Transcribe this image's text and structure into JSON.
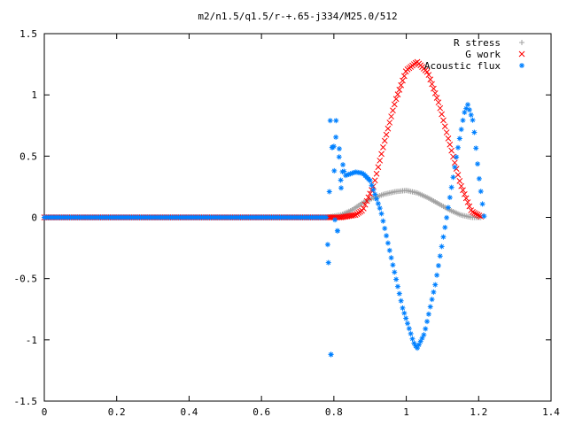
{
  "chart_data": {
    "type": "scatter",
    "title": "m2/n1.5/q1.5/r-+.65-j334/M25.0/512",
    "xlabel": "",
    "ylabel": "",
    "xlim": [
      0,
      1.4
    ],
    "ylim": [
      -1.5,
      1.5
    ],
    "xticks": [
      "0",
      "0.2",
      "0.4",
      "0.6",
      "0.8",
      "1",
      "1.2",
      "1.4"
    ],
    "yticks": [
      "1.5",
      "1",
      "0.5",
      "0",
      "-0.5",
      "-1",
      "-1.5"
    ],
    "grid": false,
    "legend_position": "top-right",
    "series": [
      {
        "name": "R stress",
        "marker": "+",
        "color": "#a0a0a0",
        "points": [
          [
            0,
            0
          ],
          [
            0.2,
            0
          ],
          [
            0.4,
            0
          ],
          [
            0.6,
            0
          ],
          [
            0.78,
            0
          ],
          [
            0.82,
            0.02
          ],
          [
            0.85,
            0.06
          ],
          [
            0.88,
            0.12
          ],
          [
            0.91,
            0.16
          ],
          [
            0.94,
            0.19
          ],
          [
            0.97,
            0.21
          ],
          [
            1.0,
            0.22
          ],
          [
            1.03,
            0.2
          ],
          [
            1.06,
            0.16
          ],
          [
            1.09,
            0.11
          ],
          [
            1.12,
            0.06
          ],
          [
            1.15,
            0.02
          ],
          [
            1.18,
            0.0
          ],
          [
            1.21,
            0.0
          ]
        ]
      },
      {
        "name": "G work",
        "marker": "x",
        "color": "#ff0000",
        "points": [
          [
            0,
            0
          ],
          [
            0.2,
            0
          ],
          [
            0.4,
            0
          ],
          [
            0.6,
            0
          ],
          [
            0.78,
            0
          ],
          [
            0.82,
            0.0
          ],
          [
            0.86,
            0.02
          ],
          [
            0.88,
            0.06
          ],
          [
            0.91,
            0.26
          ],
          [
            0.94,
            0.62
          ],
          [
            0.97,
            0.95
          ],
          [
            1.0,
            1.2
          ],
          [
            1.03,
            1.27
          ],
          [
            1.06,
            1.18
          ],
          [
            1.09,
            0.93
          ],
          [
            1.12,
            0.6
          ],
          [
            1.15,
            0.27
          ],
          [
            1.18,
            0.05
          ],
          [
            1.21,
            0.0
          ]
        ]
      },
      {
        "name": "Acoustic flux",
        "marker": "*",
        "color": "#0080ff",
        "points": [
          [
            0,
            0
          ],
          [
            0.2,
            0
          ],
          [
            0.4,
            0
          ],
          [
            0.6,
            0
          ],
          [
            0.78,
            0
          ],
          [
            0.785,
            -0.37
          ],
          [
            0.79,
            0.79
          ],
          [
            0.792,
            -1.12
          ],
          [
            0.795,
            0.57
          ],
          [
            0.8,
            0.58
          ],
          [
            0.803,
            -0.02
          ],
          [
            0.806,
            0.79
          ],
          [
            0.81,
            -0.11
          ],
          [
            0.815,
            0.56
          ],
          [
            0.82,
            0.24
          ],
          [
            0.825,
            0.43
          ],
          [
            0.83,
            0.34
          ],
          [
            0.86,
            0.37
          ],
          [
            0.88,
            0.36
          ],
          [
            0.9,
            0.3
          ],
          [
            0.93,
            0.05
          ],
          [
            0.96,
            -0.35
          ],
          [
            0.99,
            -0.74
          ],
          [
            1.02,
            -1.02
          ],
          [
            1.03,
            -1.07
          ],
          [
            1.05,
            -0.95
          ],
          [
            1.08,
            -0.55
          ],
          [
            1.11,
            -0.03
          ],
          [
            1.14,
            0.52
          ],
          [
            1.16,
            0.85
          ],
          [
            1.17,
            0.92
          ],
          [
            1.185,
            0.78
          ],
          [
            1.2,
            0.35
          ],
          [
            1.21,
            0.12
          ],
          [
            1.215,
            0.01
          ]
        ]
      }
    ]
  }
}
